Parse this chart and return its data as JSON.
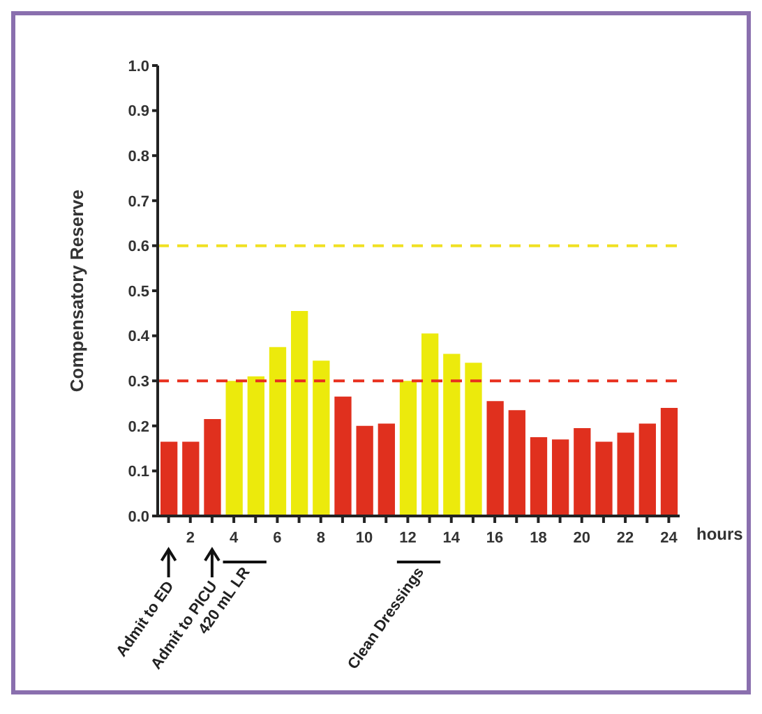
{
  "chart_data": {
    "type": "bar",
    "ylabel": "Compensatory Reserve",
    "xlabel": "hours",
    "x": [
      1,
      2,
      3,
      4,
      5,
      6,
      7,
      8,
      9,
      10,
      11,
      12,
      13,
      14,
      15,
      16,
      17,
      18,
      19,
      20,
      21,
      22,
      23,
      24
    ],
    "values": [
      0.165,
      0.165,
      0.215,
      0.3,
      0.31,
      0.375,
      0.455,
      0.345,
      0.265,
      0.2,
      0.205,
      0.3,
      0.405,
      0.36,
      0.34,
      0.255,
      0.235,
      0.175,
      0.17,
      0.195,
      0.165,
      0.185,
      0.205,
      0.24
    ],
    "colors": [
      "#e0301e",
      "#e0301e",
      "#e0301e",
      "#ecea0c",
      "#ecea0c",
      "#ecea0c",
      "#ecea0c",
      "#ecea0c",
      "#e0301e",
      "#e0301e",
      "#e0301e",
      "#ecea0c",
      "#ecea0c",
      "#ecea0c",
      "#ecea0c",
      "#e0301e",
      "#e0301e",
      "#e0301e",
      "#e0301e",
      "#e0301e",
      "#e0301e",
      "#e0301e",
      "#e0301e",
      "#e0301e"
    ],
    "xlim": [
      0.5,
      24.5
    ],
    "xticks": [
      {
        "value": 1,
        "label": null
      },
      2,
      {
        "value": 3,
        "label": null
      },
      4,
      {
        "value": 5,
        "label": null
      },
      6,
      {
        "value": 7,
        "label": null
      },
      8,
      {
        "value": 9,
        "label": null
      },
      10,
      {
        "value": 11,
        "label": null
      },
      12,
      {
        "value": 13,
        "label": null
      },
      14,
      {
        "value": 15,
        "label": null
      },
      16,
      {
        "value": 17,
        "label": null
      },
      18,
      {
        "value": 19,
        "label": null
      },
      20,
      {
        "value": 21,
        "label": null
      },
      22,
      {
        "value": 23,
        "label": null
      },
      24
    ],
    "ylim": [
      0,
      1
    ],
    "yticks": [
      {
        "value": 0,
        "label": "0.0"
      },
      {
        "value": 0.1,
        "label": "0.1"
      },
      {
        "value": 0.2,
        "label": "0.2"
      },
      {
        "value": 0.3,
        "label": "0.3"
      },
      {
        "value": 0.4,
        "label": "0.4"
      },
      {
        "value": 0.5,
        "label": "0.5"
      },
      {
        "value": 0.6,
        "label": "0.6"
      },
      {
        "value": 0.7,
        "label": "0.7"
      },
      {
        "value": 0.8,
        "label": "0.8"
      },
      {
        "value": 0.9,
        "label": "0.9"
      },
      {
        "value": 1,
        "label": "1.0"
      }
    ],
    "ref_lines": [
      {
        "axis": "y",
        "value": 0.6,
        "color": "#f0e020",
        "line_style": "dashed"
      },
      {
        "axis": "y",
        "value": 0.3,
        "color": "#e8301e",
        "line_style": "dashed"
      }
    ],
    "annotations": [
      "Admit to ED",
      "Admit to PICU",
      "420 mL LR",
      "Clean Dressings"
    ],
    "grid": false,
    "legend": false
  }
}
